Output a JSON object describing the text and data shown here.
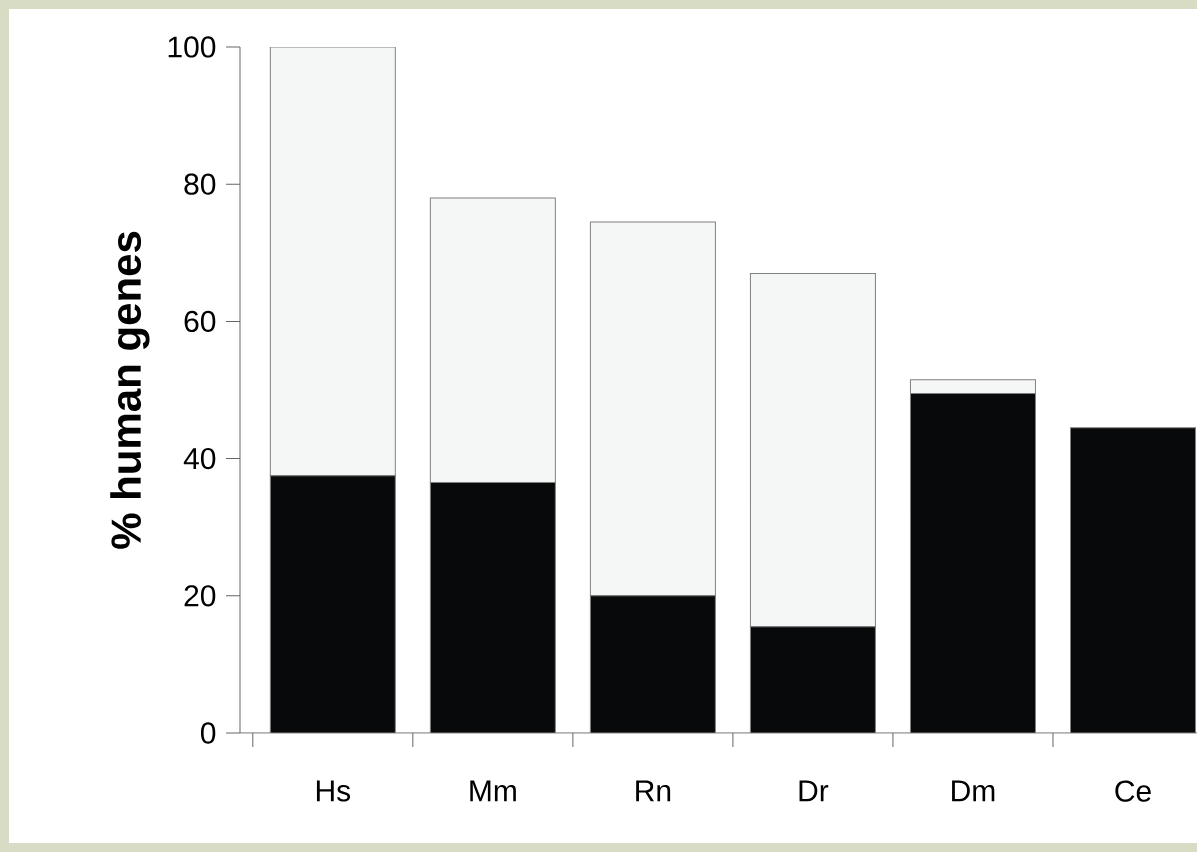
{
  "chart_data": {
    "type": "bar",
    "stacked": true,
    "ylabel": "% human genes",
    "categories": [
      "Hs",
      "Mm",
      "Rn",
      "Dr",
      "Dm",
      "Ce"
    ],
    "series": [
      {
        "color": "#08090b",
        "values": [
          37.5,
          36.5,
          20,
          15.5,
          49.5,
          44.5
        ]
      },
      {
        "color": "#f5f7f6",
        "values": [
          62.5,
          41.5,
          54.5,
          51.5,
          2,
          0
        ]
      }
    ],
    "ylim": [
      0,
      100
    ],
    "yticks": [
      0,
      20,
      40,
      60,
      80,
      100
    ]
  }
}
